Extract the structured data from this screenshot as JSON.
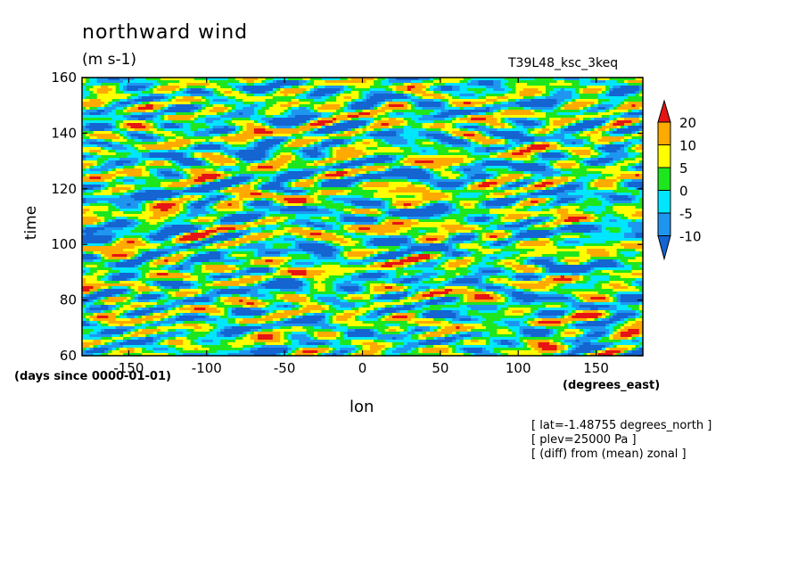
{
  "chart_data": {
    "type": "heatmap",
    "title": "northward wind",
    "units": "(m s-1)",
    "run_name": "T39L48_ksc_3keq",
    "xlabel": "lon",
    "ylabel": "time",
    "x_units": "(degrees_east)",
    "y_units": "(days since 0000-01-01)",
    "xlim": [
      -180,
      180
    ],
    "ylim": [
      60,
      160
    ],
    "x_ticks": [
      -150,
      -100,
      -50,
      0,
      50,
      100,
      150
    ],
    "y_ticks": [
      60,
      80,
      100,
      120,
      140,
      160
    ],
    "colorbar": {
      "levels": [
        -10,
        -5,
        0,
        5,
        10,
        20
      ],
      "labels": [
        "20",
        "10",
        "5",
        "0",
        "-5",
        "-10"
      ],
      "colors": [
        "#1464d2",
        "#1e96f0",
        "#00e6ff",
        "#1ee61e",
        "#ffff00",
        "#ffaa00",
        "#e61414"
      ]
    },
    "annotations": [
      "[ lat=-1.48755 degrees_north ]",
      "[ plev=25000 Pa ]",
      "[ (diff) from (mean) zonal ]"
    ]
  }
}
